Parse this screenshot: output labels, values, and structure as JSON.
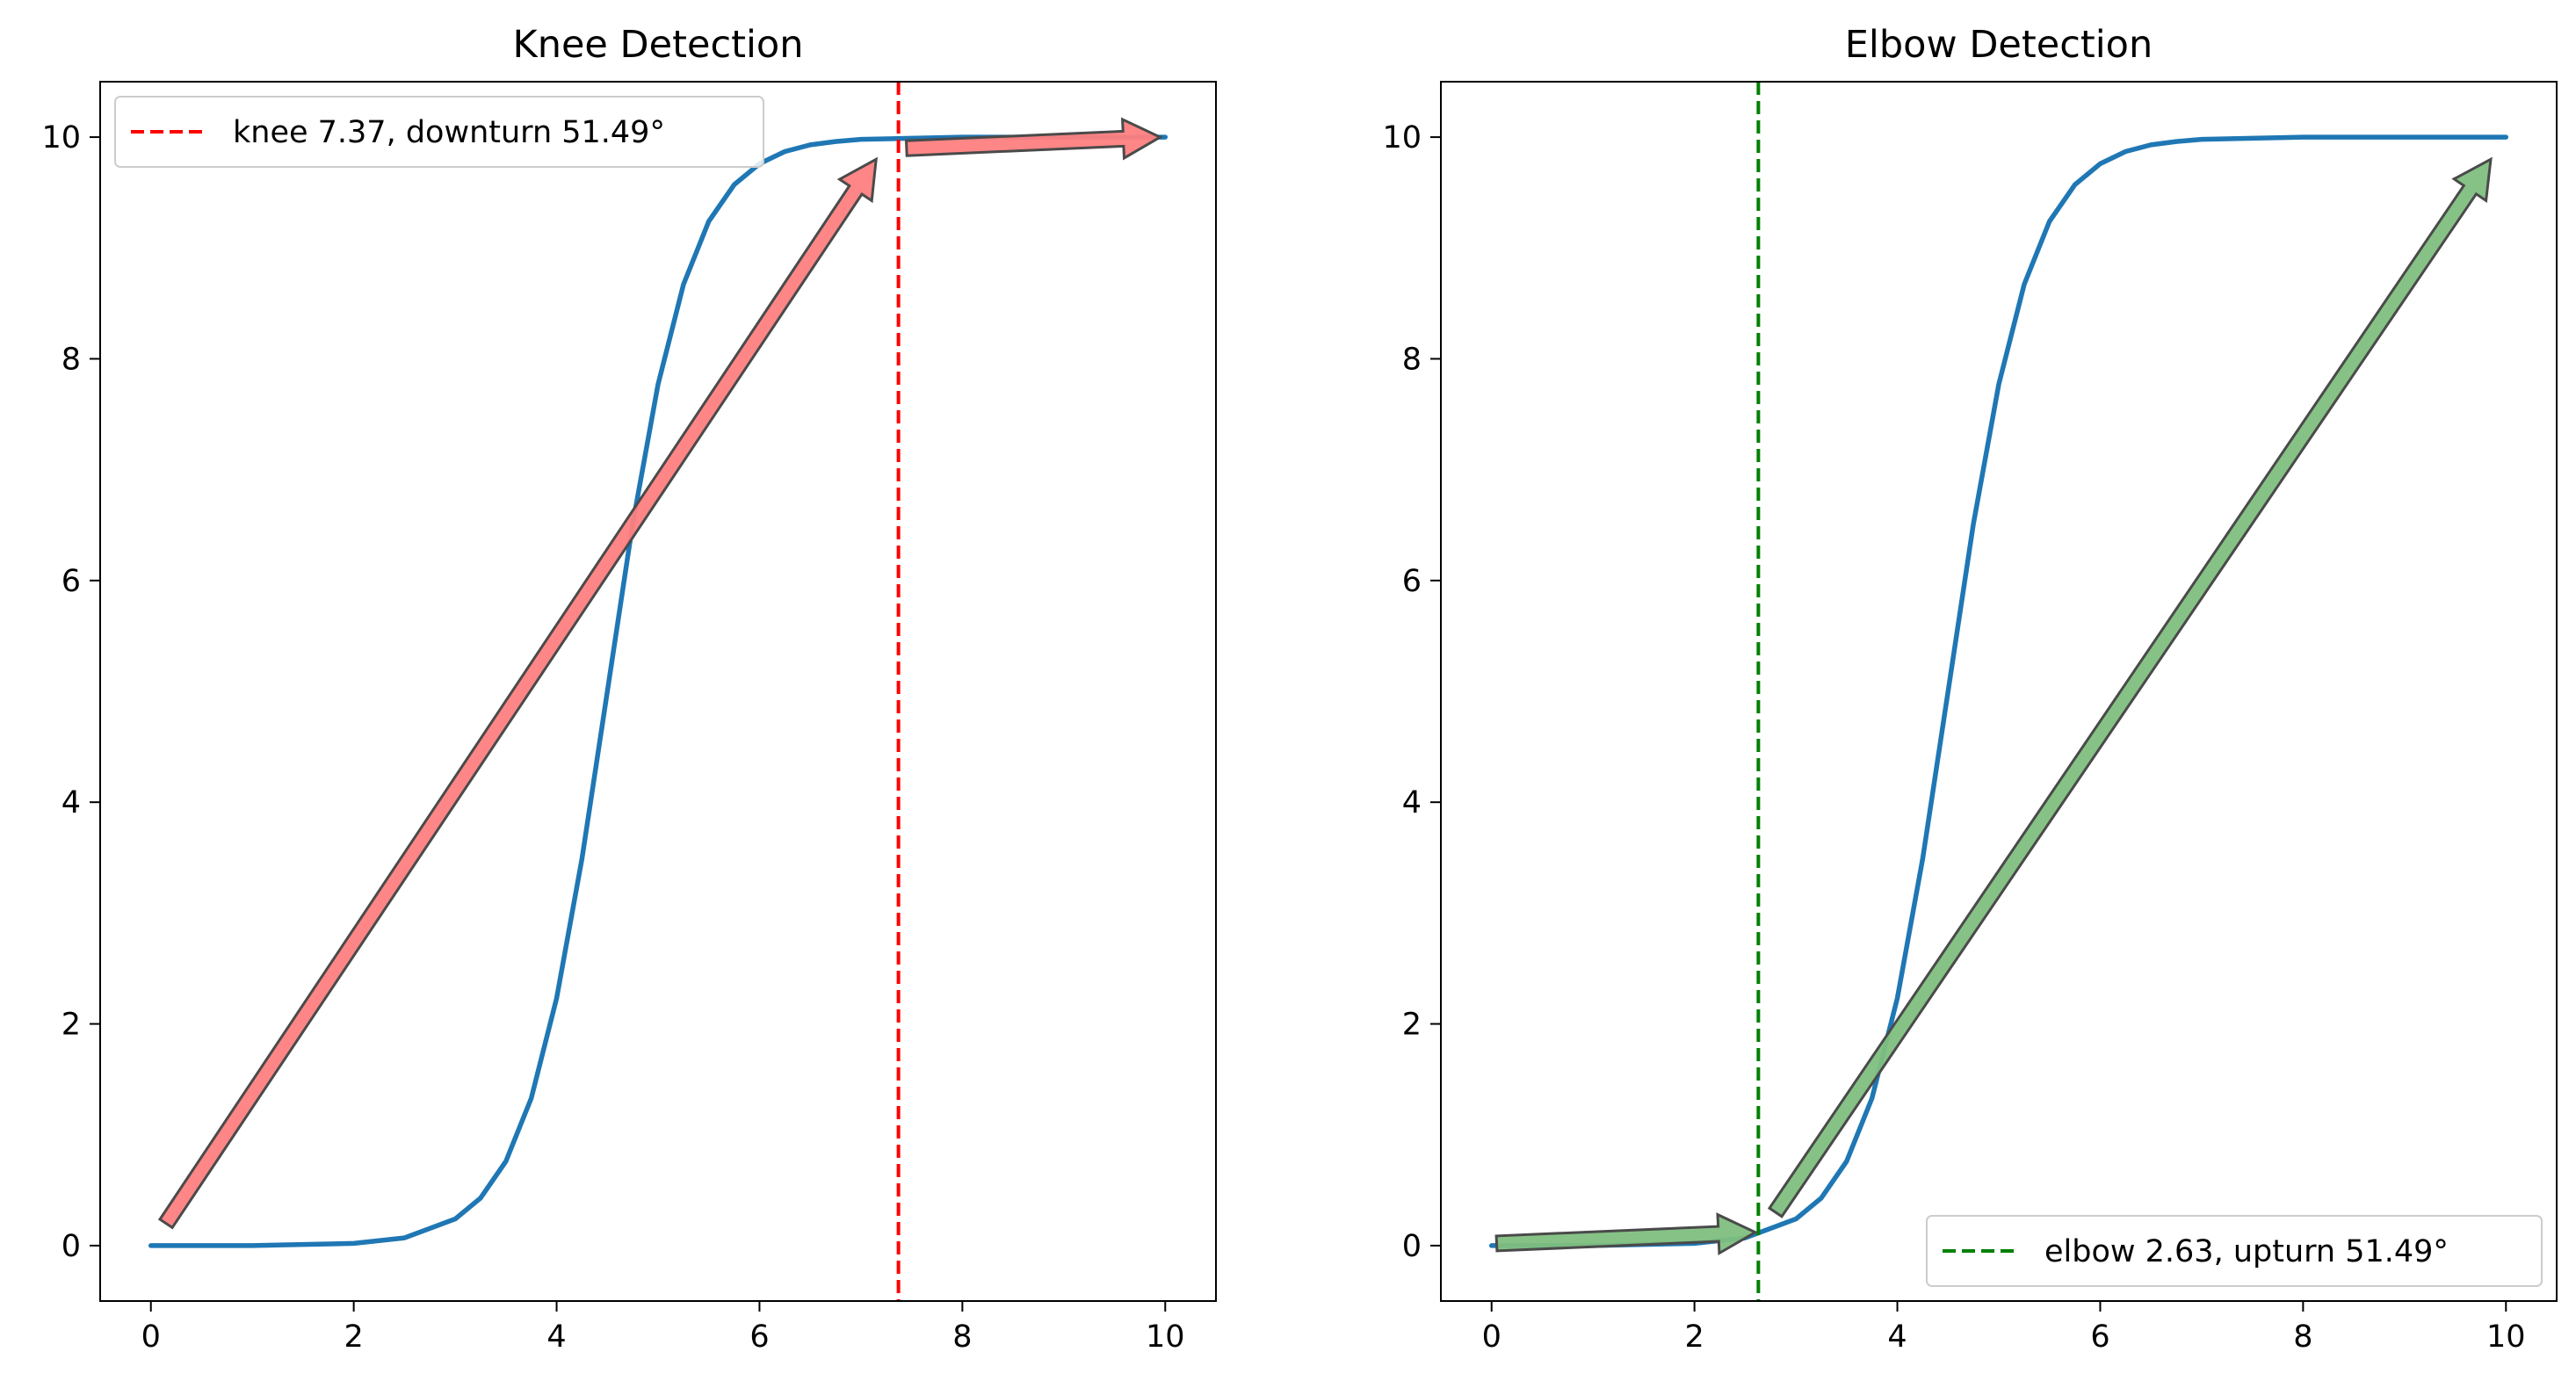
{
  "colors": {
    "curve": "#1f77b4",
    "knee_line": "#ff0000",
    "elbow_line": "#008000",
    "knee_arrow_fill": "#ff7f7f",
    "elbow_arrow_fill": "#7fbf7f",
    "arrow_edge": "#4a4a4a"
  },
  "chart_data": [
    {
      "type": "line",
      "title": "Knee Detection",
      "xlabel": "",
      "ylabel": "",
      "xlim": [
        -0.5,
        10.5
      ],
      "ylim": [
        -0.5,
        10.5
      ],
      "xticks": [
        0,
        2,
        4,
        6,
        8,
        10
      ],
      "yticks": [
        0,
        2,
        4,
        6,
        8,
        10
      ],
      "grid": false,
      "legend_position": "upper-left",
      "curve": {
        "x": [
          0,
          0.5,
          1,
          1.5,
          2,
          2.5,
          3,
          3.25,
          3.5,
          3.75,
          4,
          4.25,
          4.5,
          4.75,
          5,
          5.25,
          5.5,
          5.75,
          6,
          6.25,
          6.5,
          6.75,
          7,
          7.5,
          8,
          8.5,
          9,
          9.5,
          10
        ],
        "y": [
          0.0,
          0.0,
          0.0,
          0.01,
          0.02,
          0.07,
          0.24,
          0.43,
          0.76,
          1.33,
          2.23,
          3.49,
          5.0,
          6.51,
          7.77,
          8.67,
          9.24,
          9.57,
          9.76,
          9.87,
          9.93,
          9.96,
          9.98,
          9.99,
          10.0,
          10.0,
          10.0,
          10.0,
          10.0
        ]
      },
      "vline": {
        "x": 7.37,
        "label": "knee 7.37, downturn 51.49°"
      },
      "arrows": [
        {
          "from": [
            0.15,
            0.2
          ],
          "to": [
            7.15,
            9.8
          ]
        },
        {
          "from": [
            7.45,
            9.9
          ],
          "to": [
            9.95,
            10.0
          ]
        }
      ]
    },
    {
      "type": "line",
      "title": "Elbow Detection",
      "xlabel": "",
      "ylabel": "",
      "xlim": [
        -0.5,
        10.5
      ],
      "ylim": [
        -0.5,
        10.5
      ],
      "xticks": [
        0,
        2,
        4,
        6,
        8,
        10
      ],
      "yticks": [
        0,
        2,
        4,
        6,
        8,
        10
      ],
      "grid": false,
      "legend_position": "lower-right",
      "curve": {
        "x": [
          0,
          0.5,
          1,
          1.5,
          2,
          2.5,
          3,
          3.25,
          3.5,
          3.75,
          4,
          4.25,
          4.5,
          4.75,
          5,
          5.25,
          5.5,
          5.75,
          6,
          6.25,
          6.5,
          6.75,
          7,
          7.5,
          8,
          8.5,
          9,
          9.5,
          10
        ],
        "y": [
          0.0,
          0.0,
          0.0,
          0.01,
          0.02,
          0.07,
          0.24,
          0.43,
          0.76,
          1.33,
          2.23,
          3.49,
          5.0,
          6.51,
          7.77,
          8.67,
          9.24,
          9.57,
          9.76,
          9.87,
          9.93,
          9.96,
          9.98,
          9.99,
          10.0,
          10.0,
          10.0,
          10.0,
          10.0
        ]
      },
      "vline": {
        "x": 2.63,
        "label": "elbow 2.63, upturn 51.49°"
      },
      "arrows": [
        {
          "from": [
            0.05,
            0.02
          ],
          "to": [
            2.6,
            0.12
          ]
        },
        {
          "from": [
            2.8,
            0.3
          ],
          "to": [
            9.85,
            9.8
          ]
        }
      ]
    }
  ]
}
